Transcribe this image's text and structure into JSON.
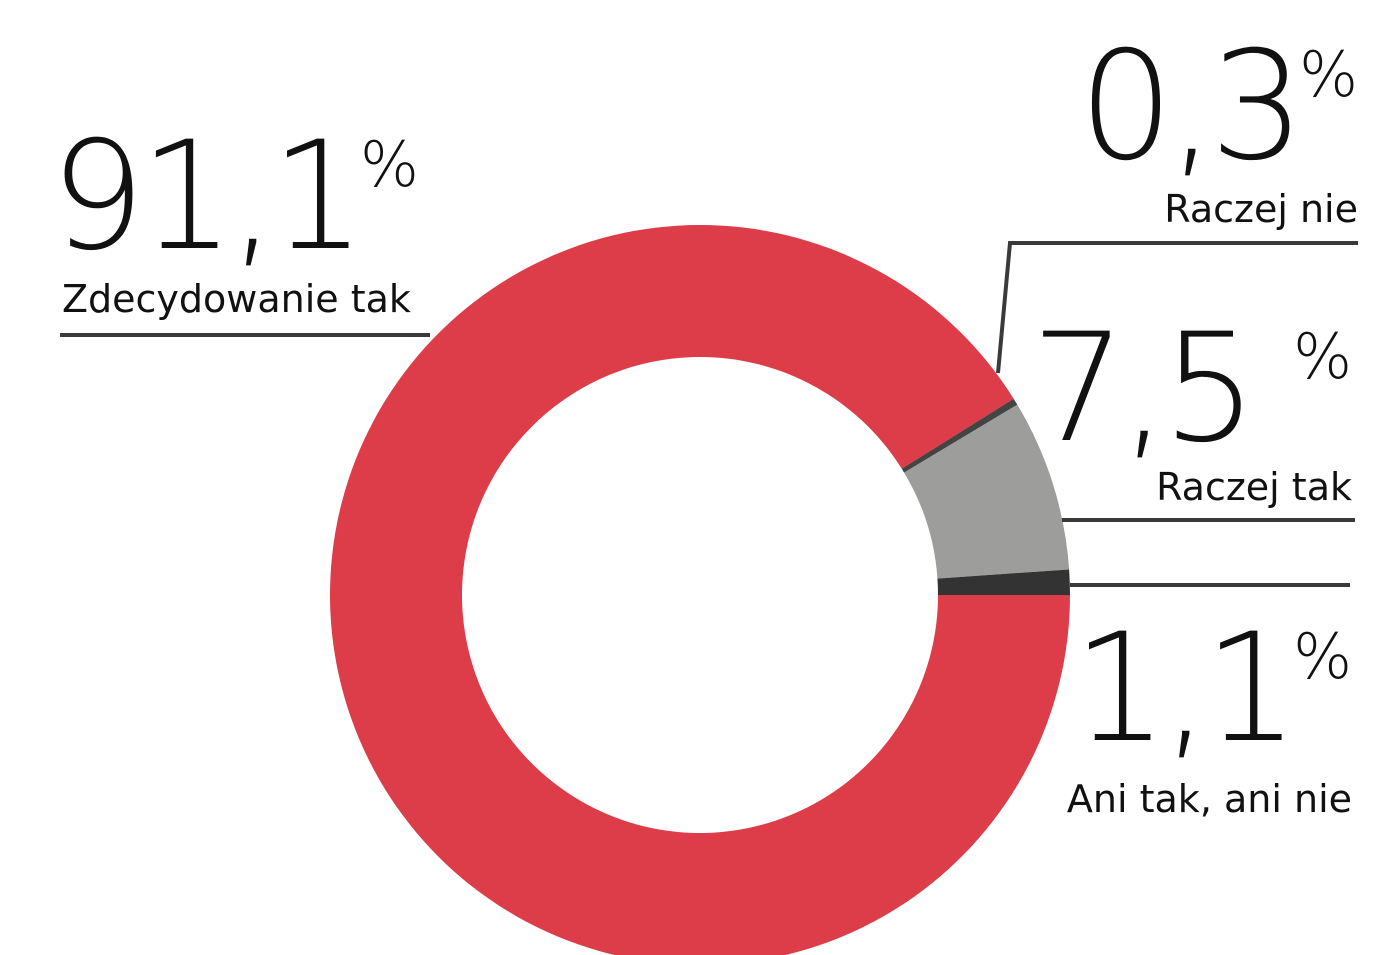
{
  "chart_data": {
    "type": "donut",
    "categories": [
      "Ani tak, ani nie",
      "Raczej tak",
      "Raczej nie",
      "Zdecydowanie tak"
    ],
    "values": [
      1.1,
      7.5,
      0.3,
      91.1
    ],
    "value_labels": [
      "1,1%",
      "7,5 %",
      "0,3%",
      "91,1%"
    ],
    "colors": [
      "#333333",
      "#9d9d9b",
      "#444444",
      "#dc3d48"
    ]
  }
}
